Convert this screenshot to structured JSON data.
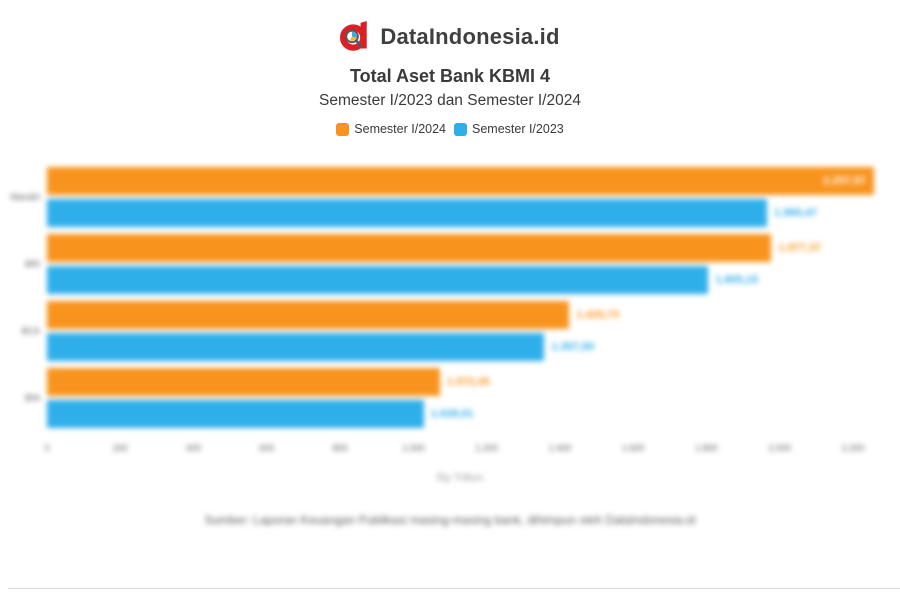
{
  "brand": {
    "name": "DataIndonesia.id"
  },
  "header": {
    "title": "Total Aset Bank KBMI 4",
    "subtitle": "Semester I/2023 dan Semester I/2024"
  },
  "legend": [
    {
      "label": "Semester I/2024",
      "color": "#F8941D"
    },
    {
      "label": "Semester I/2023",
      "color": "#2FAFEA"
    }
  ],
  "chart_data": {
    "type": "bar",
    "orientation": "horizontal",
    "title": "Total Aset Bank KBMI 4",
    "subtitle": "Semester I/2023 dan Semester I/2024",
    "categories": [
      "Mandiri",
      "BRI",
      "BCA",
      "BNI"
    ],
    "series": [
      {
        "name": "Semester I/2024",
        "color": "#F8941D",
        "values": [
          2257.57,
          1977.37,
          1425.73,
          1072.45
        ],
        "labels": [
          "2.257,57",
          "1.977,37",
          "1.425,73",
          "1.072,45"
        ]
      },
      {
        "name": "Semester I/2023",
        "color": "#2FAFEA",
        "values": [
          1965.47,
          1805.15,
          1357.5,
          1028.01
        ],
        "labels": [
          "1.965,47",
          "1.805,15",
          "1.357,50",
          "1.028,01"
        ]
      }
    ],
    "xlabel": "Rp Triliun",
    "xlim": [
      0,
      2200
    ],
    "x_ticks": [
      "0",
      "200",
      "400",
      "600",
      "800",
      "1.000",
      "1.200",
      "1.400",
      "1.600",
      "1.800",
      "2.000",
      "2.200"
    ],
    "grid": false,
    "legend_position": "top"
  },
  "footer": {
    "source": "Sumber: Laporan Keuangan Publikasi masing-masing bank, dihimpun oleh DataIndonesia.id"
  },
  "colors": {
    "brand_red": "#D92027",
    "text_dark": "#3a3a3a",
    "inside_label": "#FFFFFF"
  }
}
